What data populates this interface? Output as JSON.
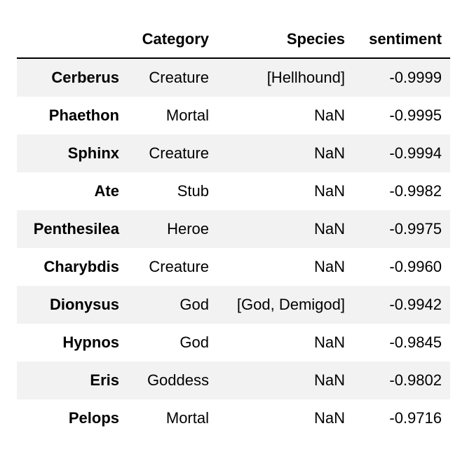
{
  "table": {
    "columns": [
      "",
      "Category",
      "Species",
      "sentiment"
    ],
    "rows": [
      {
        "name": "Cerberus",
        "category": "Creature",
        "species": "[Hellhound]",
        "sentiment": "-0.9999"
      },
      {
        "name": "Phaethon",
        "category": "Mortal",
        "species": "NaN",
        "sentiment": "-0.9995"
      },
      {
        "name": "Sphinx",
        "category": "Creature",
        "species": "NaN",
        "sentiment": "-0.9994"
      },
      {
        "name": "Ate",
        "category": "Stub",
        "species": "NaN",
        "sentiment": "-0.9982"
      },
      {
        "name": "Penthesilea",
        "category": "Heroe",
        "species": "NaN",
        "sentiment": "-0.9975"
      },
      {
        "name": "Charybdis",
        "category": "Creature",
        "species": "NaN",
        "sentiment": "-0.9960"
      },
      {
        "name": "Dionysus",
        "category": "God",
        "species": "[God, Demigod]",
        "sentiment": "-0.9942"
      },
      {
        "name": "Hypnos",
        "category": "God",
        "species": "NaN",
        "sentiment": "-0.9845"
      },
      {
        "name": "Eris",
        "category": "Goddess",
        "species": "NaN",
        "sentiment": "-0.9802"
      },
      {
        "name": "Pelops",
        "category": "Mortal",
        "species": "NaN",
        "sentiment": "-0.9716"
      }
    ]
  }
}
